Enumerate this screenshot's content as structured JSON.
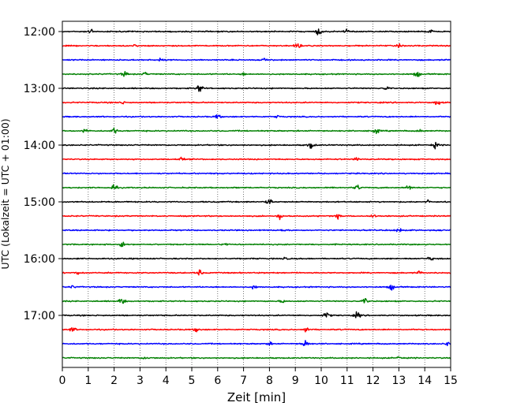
{
  "chart_data": {
    "type": "line",
    "xlabel": "Zeit  [min]",
    "ylabel": "UTC (Lokalzeit = UTC + 01:00)",
    "xlim": [
      0,
      15
    ],
    "x_ticks": [
      0,
      1,
      2,
      3,
      4,
      5,
      6,
      7,
      8,
      9,
      10,
      11,
      12,
      13,
      14,
      15
    ],
    "vertical_grid": "dotted at each minute",
    "y_ticks": [
      "12:00",
      "13:00",
      "14:00",
      "15:00",
      "16:00",
      "17:00"
    ],
    "traces_per_hour": 4,
    "trace_color_cycle": [
      "#000000",
      "#ff0000",
      "#0000ff",
      "#008000"
    ],
    "series": [
      {
        "start": "12:00",
        "color": "#000000",
        "events": [
          [
            1.1,
            0.6
          ],
          [
            9.9,
            0.9
          ],
          [
            11.0,
            0.5
          ],
          [
            14.2,
            0.5
          ]
        ]
      },
      {
        "start": "12:15",
        "color": "#ff0000",
        "events": [
          [
            2.8,
            0.3
          ],
          [
            9.1,
            0.7
          ],
          [
            13.0,
            0.3
          ]
        ]
      },
      {
        "start": "12:30",
        "color": "#0000ff",
        "events": [
          [
            3.8,
            0.4
          ],
          [
            7.8,
            0.3
          ]
        ]
      },
      {
        "start": "12:45",
        "color": "#008000",
        "events": [
          [
            2.4,
            0.6
          ],
          [
            3.2,
            0.4
          ],
          [
            7.0,
            0.3
          ],
          [
            13.7,
            0.7
          ]
        ]
      },
      {
        "start": "13:00",
        "color": "#000000",
        "events": [
          [
            5.3,
            0.9
          ],
          [
            12.5,
            0.4
          ]
        ]
      },
      {
        "start": "13:15",
        "color": "#ff0000",
        "events": [
          [
            2.3,
            0.4
          ],
          [
            14.5,
            0.7
          ]
        ]
      },
      {
        "start": "13:30",
        "color": "#0000ff",
        "events": [
          [
            6.0,
            0.5
          ],
          [
            8.3,
            0.3
          ]
        ]
      },
      {
        "start": "13:45",
        "color": "#008000",
        "events": [
          [
            0.9,
            0.5
          ],
          [
            2.0,
            0.6
          ],
          [
            12.1,
            0.7
          ],
          [
            13.8,
            0.4
          ]
        ]
      },
      {
        "start": "14:00",
        "color": "#000000",
        "events": [
          [
            9.6,
            0.8
          ],
          [
            14.4,
            0.7
          ]
        ]
      },
      {
        "start": "14:15",
        "color": "#ff0000",
        "events": [
          [
            4.6,
            0.4
          ],
          [
            11.4,
            0.6
          ]
        ]
      },
      {
        "start": "14:30",
        "color": "#0000ff",
        "events": [
          [
            6.1,
            0.3
          ],
          [
            10.0,
            0.3
          ]
        ]
      },
      {
        "start": "14:45",
        "color": "#008000",
        "events": [
          [
            2.0,
            0.6
          ],
          [
            11.4,
            0.6
          ],
          [
            13.4,
            0.6
          ]
        ]
      },
      {
        "start": "15:00",
        "color": "#000000",
        "events": [
          [
            8.0,
            0.7
          ],
          [
            14.1,
            0.4
          ]
        ]
      },
      {
        "start": "15:15",
        "color": "#ff0000",
        "events": [
          [
            8.4,
            0.6
          ],
          [
            10.6,
            0.6
          ],
          [
            12.0,
            0.4
          ]
        ]
      },
      {
        "start": "15:30",
        "color": "#0000ff",
        "events": [
          [
            8.5,
            0.3
          ],
          [
            13.0,
            0.7
          ]
        ]
      },
      {
        "start": "15:45",
        "color": "#008000",
        "events": [
          [
            2.3,
            0.7
          ],
          [
            6.3,
            0.4
          ]
        ]
      },
      {
        "start": "16:00",
        "color": "#000000",
        "events": [
          [
            8.6,
            0.3
          ],
          [
            14.2,
            0.5
          ]
        ]
      },
      {
        "start": "16:15",
        "color": "#ff0000",
        "events": [
          [
            0.6,
            0.4
          ],
          [
            5.3,
            0.6
          ],
          [
            13.8,
            0.3
          ]
        ]
      },
      {
        "start": "16:30",
        "color": "#0000ff",
        "events": [
          [
            0.4,
            0.3
          ],
          [
            7.4,
            0.4
          ],
          [
            12.7,
            0.7
          ]
        ]
      },
      {
        "start": "16:45",
        "color": "#008000",
        "events": [
          [
            2.3,
            0.7
          ],
          [
            8.5,
            0.4
          ],
          [
            11.7,
            0.6
          ]
        ]
      },
      {
        "start": "17:00",
        "color": "#000000",
        "events": [
          [
            10.2,
            0.7
          ],
          [
            11.4,
            0.7
          ]
        ]
      },
      {
        "start": "17:15",
        "color": "#ff0000",
        "events": [
          [
            0.4,
            0.6
          ],
          [
            5.2,
            0.5
          ],
          [
            9.4,
            0.6
          ]
        ]
      },
      {
        "start": "17:30",
        "color": "#0000ff",
        "events": [
          [
            8.0,
            0.4
          ],
          [
            9.4,
            0.9
          ],
          [
            14.9,
            0.5
          ]
        ]
      },
      {
        "start": "17:45",
        "color": "#008000",
        "events": [
          [
            3.2,
            0.4
          ],
          [
            13.0,
            0.4
          ]
        ]
      }
    ]
  }
}
